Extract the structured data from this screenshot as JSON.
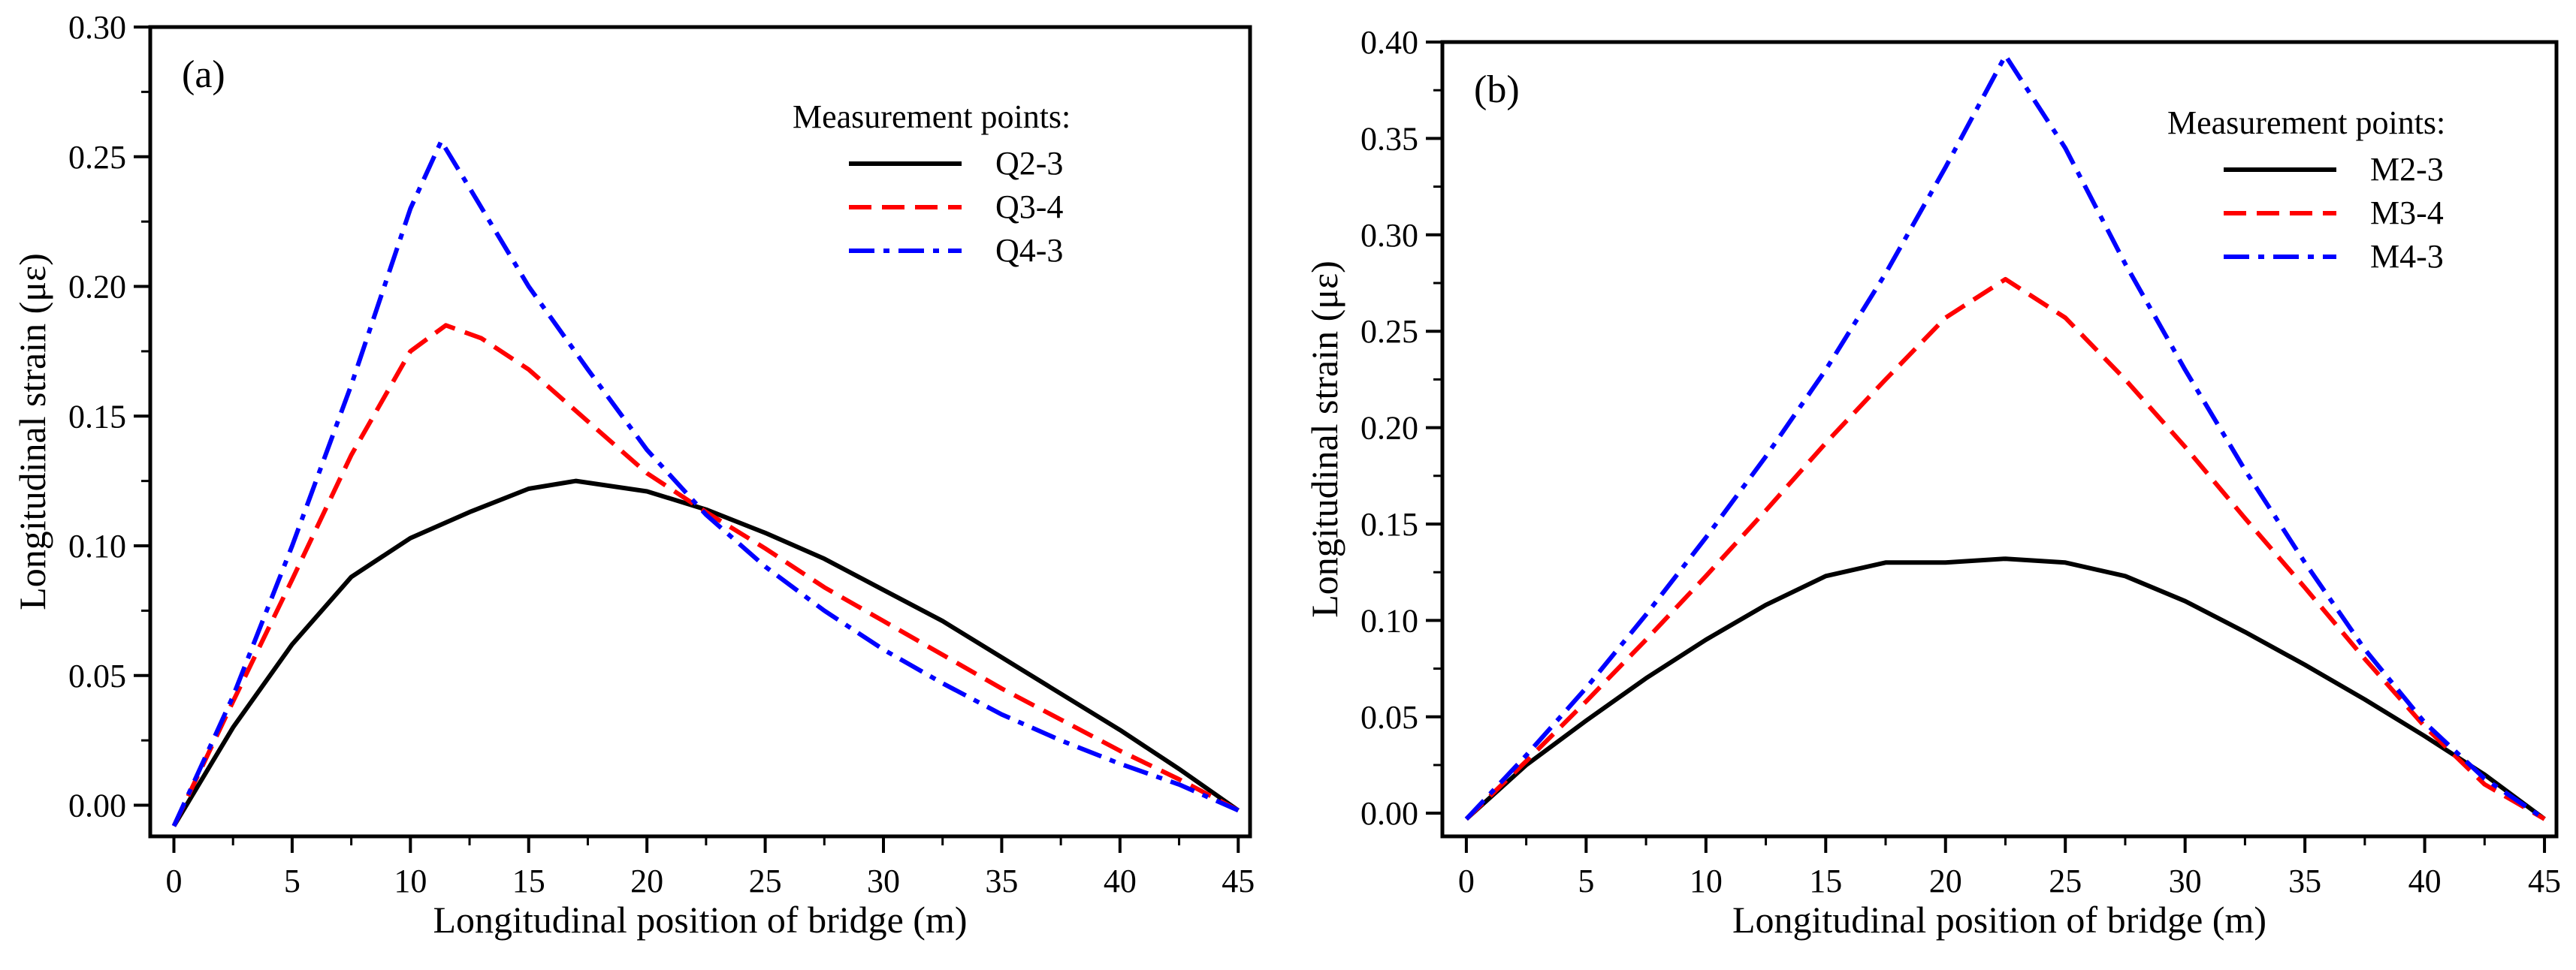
{
  "chart_data": [
    {
      "type": "line",
      "panel_label": "(a)",
      "xlabel": "Longitudinal position of bridge (m)",
      "ylabel": "Longitudinal strain (με)",
      "xlim": [
        -1,
        45.5
      ],
      "ylim": [
        -0.012,
        0.3
      ],
      "xticks": [
        0,
        5,
        10,
        15,
        20,
        25,
        30,
        35,
        40,
        45
      ],
      "yticks": [
        0.0,
        0.05,
        0.1,
        0.15,
        0.2,
        0.25,
        0.3
      ],
      "ytick_labels": [
        "0.00",
        "0.05",
        "0.10",
        "0.15",
        "0.20",
        "0.25",
        "0.30"
      ],
      "grid": false,
      "legend": {
        "title": "Measurement points:",
        "placement": "top-right"
      },
      "series": [
        {
          "name": "Q2-3",
          "color": "#000000",
          "style": "solid",
          "x": [
            0,
            2.5,
            5,
            7.5,
            10,
            12.5,
            15,
            17,
            20,
            22.5,
            25,
            27.5,
            30,
            32.5,
            35,
            37.5,
            40,
            42.5,
            45
          ],
          "y": [
            -0.008,
            0.03,
            0.062,
            0.088,
            0.103,
            0.113,
            0.122,
            0.125,
            0.121,
            0.114,
            0.105,
            0.095,
            0.083,
            0.071,
            0.057,
            0.043,
            0.029,
            0.014,
            -0.002
          ]
        },
        {
          "name": "Q3-4",
          "color": "#ff0000",
          "style": "dashed",
          "x": [
            0,
            2.5,
            5,
            7.5,
            10,
            11.5,
            13,
            15,
            17.5,
            20,
            22.5,
            25,
            27.5,
            30,
            32.5,
            35,
            37.5,
            40,
            42.5,
            45
          ],
          "y": [
            -0.008,
            0.04,
            0.087,
            0.135,
            0.175,
            0.185,
            0.18,
            0.168,
            0.148,
            0.128,
            0.113,
            0.099,
            0.084,
            0.071,
            0.058,
            0.045,
            0.033,
            0.021,
            0.01,
            -0.002
          ]
        },
        {
          "name": "Q4-3",
          "color": "#0000ff",
          "style": "dashdot",
          "x": [
            0,
            2.5,
            5,
            7.5,
            10,
            11.3,
            12.5,
            15,
            17.5,
            20,
            22.5,
            25,
            27.5,
            30,
            32.5,
            35,
            37.5,
            40,
            42.5,
            45
          ],
          "y": [
            -0.008,
            0.042,
            0.1,
            0.162,
            0.23,
            0.256,
            0.238,
            0.2,
            0.168,
            0.137,
            0.112,
            0.092,
            0.075,
            0.06,
            0.047,
            0.035,
            0.025,
            0.016,
            0.008,
            -0.002
          ]
        }
      ]
    },
    {
      "type": "line",
      "panel_label": "(b)",
      "xlabel": "Longitudinal position of bridge (m)",
      "ylabel": "Longitudinal strain (με)",
      "xlim": [
        -1,
        45.5
      ],
      "ylim": [
        -0.012,
        0.4
      ],
      "xticks": [
        0,
        5,
        10,
        15,
        20,
        25,
        30,
        35,
        40,
        45
      ],
      "yticks": [
        0.0,
        0.05,
        0.1,
        0.15,
        0.2,
        0.25,
        0.3,
        0.35,
        0.4
      ],
      "ytick_labels": [
        "0.00",
        "0.05",
        "0.10",
        "0.15",
        "0.20",
        "0.25",
        "0.30",
        "0.35",
        "0.40"
      ],
      "grid": false,
      "legend": {
        "title": "Measurement points:",
        "placement": "top-right"
      },
      "series": [
        {
          "name": "M2-3",
          "color": "#000000",
          "style": "solid",
          "x": [
            0,
            2.5,
            5,
            7.5,
            10,
            12.5,
            15,
            17.5,
            20,
            22.5,
            25,
            27.5,
            30,
            32.5,
            35,
            37.5,
            40,
            42.5,
            45
          ],
          "y": [
            -0.003,
            0.025,
            0.048,
            0.07,
            0.09,
            0.108,
            0.123,
            0.13,
            0.13,
            0.132,
            0.13,
            0.123,
            0.11,
            0.094,
            0.077,
            0.059,
            0.04,
            0.02,
            -0.003
          ]
        },
        {
          "name": "M3-4",
          "color": "#ff0000",
          "style": "dashed",
          "x": [
            0,
            2.5,
            5,
            7.5,
            10,
            12.5,
            15,
            17.5,
            20,
            22.5,
            25,
            27.5,
            30,
            32.5,
            35,
            37.5,
            40,
            42.5,
            45
          ],
          "y": [
            -0.003,
            0.027,
            0.058,
            0.09,
            0.123,
            0.157,
            0.192,
            0.225,
            0.257,
            0.277,
            0.257,
            0.225,
            0.19,
            0.153,
            0.117,
            0.08,
            0.045,
            0.015,
            -0.003
          ]
        },
        {
          "name": "M4-3",
          "color": "#0000ff",
          "style": "dashdot",
          "x": [
            0,
            2.5,
            5,
            7.5,
            10,
            12.5,
            15,
            17.5,
            20,
            22.5,
            25,
            27.5,
            30,
            32.5,
            35,
            37.5,
            40,
            42.5,
            45
          ],
          "y": [
            -0.003,
            0.03,
            0.065,
            0.103,
            0.143,
            0.185,
            0.23,
            0.28,
            0.335,
            0.393,
            0.345,
            0.285,
            0.23,
            0.178,
            0.13,
            0.085,
            0.047,
            0.018,
            -0.003
          ]
        }
      ]
    }
  ]
}
